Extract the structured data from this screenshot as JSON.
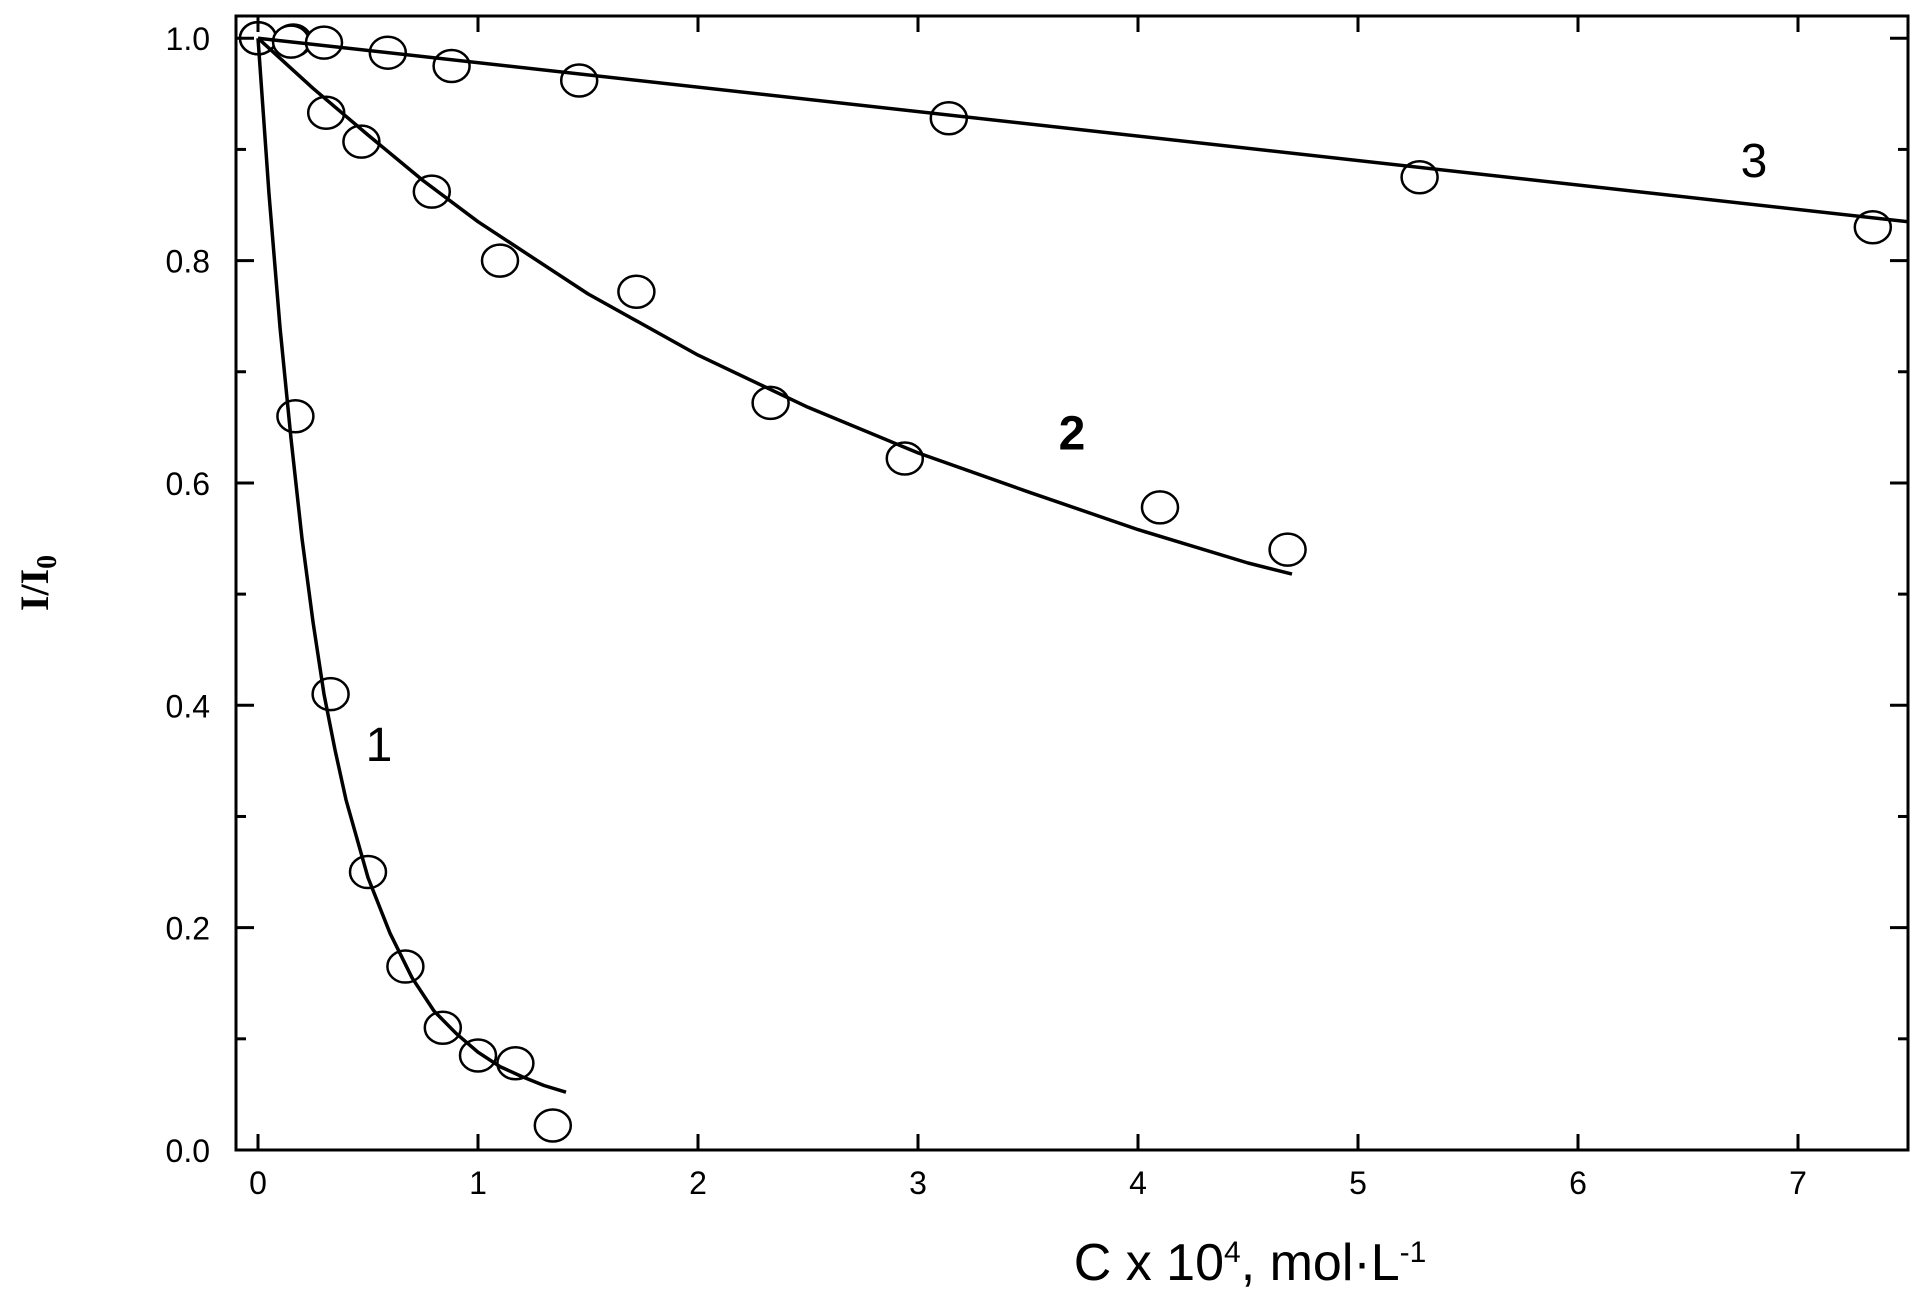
{
  "chart_data": {
    "type": "scatter",
    "xlabel": {
      "parts": [
        {
          "text": "C x 10",
          "sup": false
        },
        {
          "text": "4",
          "sup": true
        },
        {
          "text": ", mol·L",
          "sup": false
        },
        {
          "text": "-1",
          "sup": true
        }
      ]
    },
    "ylabel": {
      "main": "I/I",
      "sub": "0"
    },
    "xlim": [
      -0.1,
      7.5
    ],
    "ylim": [
      0.0,
      1.02
    ],
    "xticks": [
      0,
      1,
      2,
      3,
      4,
      5,
      6,
      7
    ],
    "xtick_labels": [
      "0",
      "1",
      "2",
      "3",
      "4",
      "5",
      "6",
      "7"
    ],
    "yticks": [
      0.0,
      0.2,
      0.4,
      0.6,
      0.8,
      1.0
    ],
    "ytick_labels": [
      "0.0",
      "0.2",
      "0.4",
      "0.6",
      "0.8",
      "1.0"
    ],
    "y_minor_ticks": [
      0.1,
      0.3,
      0.5,
      0.7,
      0.9
    ],
    "grid": false,
    "legend": "none",
    "series": [
      {
        "name": "1",
        "points": [
          [
            0.0,
            1.0
          ],
          [
            0.17,
            0.66
          ],
          [
            0.33,
            0.41
          ],
          [
            0.5,
            0.25
          ],
          [
            0.67,
            0.165
          ],
          [
            0.84,
            0.11
          ],
          [
            1.0,
            0.085
          ],
          [
            1.17,
            0.078
          ],
          [
            1.34,
            0.022
          ]
        ],
        "fit": [
          [
            0.0,
            1.0
          ],
          [
            0.05,
            0.86
          ],
          [
            0.1,
            0.74
          ],
          [
            0.15,
            0.64
          ],
          [
            0.2,
            0.55
          ],
          [
            0.25,
            0.475
          ],
          [
            0.3,
            0.41
          ],
          [
            0.35,
            0.36
          ],
          [
            0.4,
            0.315
          ],
          [
            0.5,
            0.245
          ],
          [
            0.6,
            0.195
          ],
          [
            0.7,
            0.155
          ],
          [
            0.8,
            0.125
          ],
          [
            0.9,
            0.105
          ],
          [
            1.0,
            0.088
          ],
          [
            1.1,
            0.075
          ],
          [
            1.2,
            0.066
          ],
          [
            1.3,
            0.058
          ],
          [
            1.4,
            0.052
          ]
        ],
        "label_at": [
          0.55,
          0.35
        ]
      },
      {
        "name": "2",
        "points": [
          [
            0.0,
            1.0
          ],
          [
            0.16,
            0.998
          ],
          [
            0.31,
            0.933
          ],
          [
            0.47,
            0.907
          ],
          [
            0.79,
            0.862
          ],
          [
            1.1,
            0.8
          ],
          [
            1.72,
            0.772
          ],
          [
            2.33,
            0.672
          ],
          [
            2.94,
            0.622
          ],
          [
            4.1,
            0.578
          ],
          [
            4.68,
            0.54
          ]
        ],
        "fit": [
          [
            0.0,
            1.0
          ],
          [
            0.25,
            0.955
          ],
          [
            0.5,
            0.913
          ],
          [
            0.75,
            0.872
          ],
          [
            1.0,
            0.835
          ],
          [
            1.5,
            0.77
          ],
          [
            2.0,
            0.715
          ],
          [
            2.5,
            0.668
          ],
          [
            3.0,
            0.627
          ],
          [
            3.5,
            0.592
          ],
          [
            4.0,
            0.558
          ],
          [
            4.5,
            0.528
          ],
          [
            4.7,
            0.518
          ]
        ],
        "label_at": [
          3.7,
          0.63
        ]
      },
      {
        "name": "3",
        "points": [
          [
            0.0,
            1.0
          ],
          [
            0.15,
            0.997
          ],
          [
            0.3,
            0.996
          ],
          [
            0.59,
            0.987
          ],
          [
            0.88,
            0.975
          ],
          [
            1.46,
            0.962
          ],
          [
            3.14,
            0.928
          ],
          [
            5.28,
            0.875
          ],
          [
            7.34,
            0.83
          ]
        ],
        "fit": [
          [
            0.0,
            1.0
          ],
          [
            7.5,
            0.835
          ]
        ],
        "label_at": [
          6.8,
          0.875
        ]
      }
    ]
  }
}
